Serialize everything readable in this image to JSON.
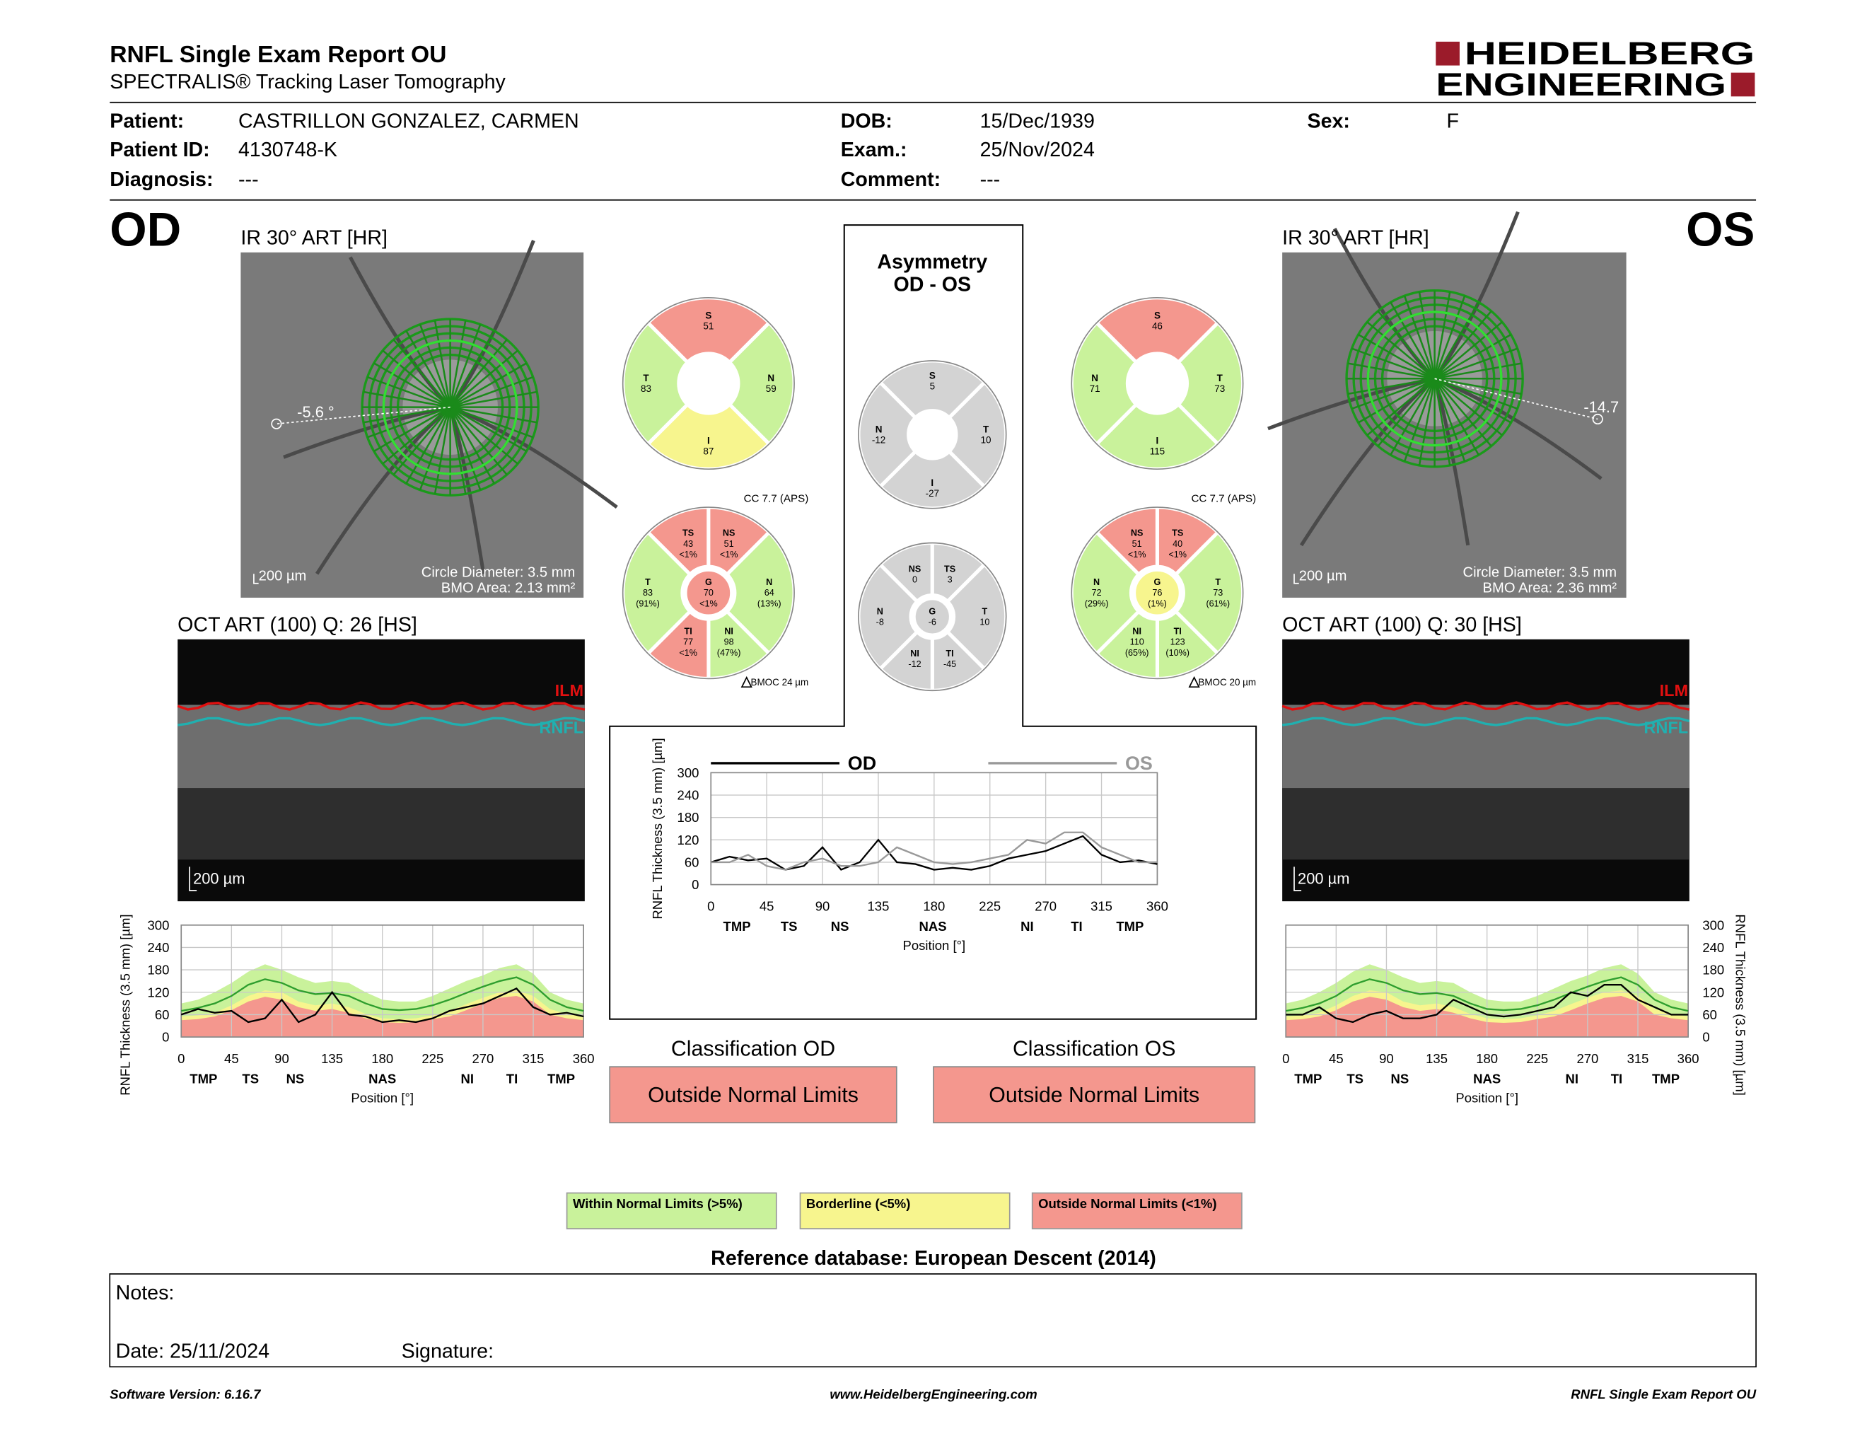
{
  "header": {
    "title": "RNFL Single Exam Report OU",
    "subtitle": "SPECTRALIS® Tracking Laser Tomography",
    "logo": [
      "HEIDELBERG",
      "ENGINEERING"
    ]
  },
  "patient": [
    {
      "label": "Patient:",
      "value": "CASTRILLON GONZALEZ, CARMEN"
    },
    {
      "label": "Patient ID:",
      "value": "4130748-K"
    },
    {
      "label": "Diagnosis:",
      "value": "---"
    },
    {
      "label": "DOB:",
      "value": "15/Dec/1939"
    },
    {
      "label": "Exam.:",
      "value": "25/Nov/2024"
    },
    {
      "label": "Comment:",
      "value": "---"
    },
    {
      "label": "Sex:",
      "value": "F"
    }
  ],
  "od": {
    "label": "OD",
    "image_title": "IR 30° ART [HR]",
    "angle": "-5.6 °",
    "image_scale": "200 µm",
    "circle": "Circle Diameter: 3.5 mm",
    "bmo": "BMO Area: 2.13 mm²",
    "oct_title": "OCT ART (100) Q: 26 [HS]",
    "oct_scale": "200 µm",
    "ilm": "ILM",
    "rnfl": "RNFL",
    "cc": "CC 7.7 (APS)",
    "bmoc": "BMOC 24 µm",
    "sectors4": [
      {
        "name": "S",
        "value": 51,
        "color": "#f4978e"
      },
      {
        "name": "N",
        "value": 59,
        "color": "#c9f29b"
      },
      {
        "name": "I",
        "value": 87,
        "color": "#f7f58e"
      },
      {
        "name": "T",
        "value": 83,
        "color": "#c9f29b"
      }
    ],
    "sectors6": [
      {
        "name": "TS",
        "value": 43,
        "pct": "<1%",
        "color": "#f4978e"
      },
      {
        "name": "NS",
        "value": 51,
        "pct": "<1%",
        "color": "#f4978e"
      },
      {
        "name": "N",
        "value": 64,
        "pct": "(13%)",
        "color": "#c9f29b"
      },
      {
        "name": "NI",
        "value": 98,
        "pct": "(47%)",
        "color": "#c9f29b"
      },
      {
        "name": "TI",
        "value": 77,
        "pct": "<1%",
        "color": "#f4978e"
      },
      {
        "name": "T",
        "value": 83,
        "pct": "(91%)",
        "color": "#c9f29b"
      },
      {
        "name": "G",
        "value": 70,
        "pct": "<1%",
        "color": "#f4978e"
      }
    ],
    "tsnit": {
      "type": "line",
      "y_label": "RNFL Thickness (3.5 mm) [µm]",
      "x_label": "Position [°]",
      "xlim": [
        0,
        360
      ],
      "ylim": [
        0,
        300
      ],
      "xticks": [
        0,
        45,
        90,
        135,
        180,
        225,
        270,
        315,
        360
      ],
      "yticks": [
        0,
        60,
        120,
        180,
        240,
        300
      ],
      "grid": true,
      "sector_ticks": [
        {
          "value": 20,
          "label": "TMP"
        },
        {
          "value": 62,
          "label": "TS"
        },
        {
          "value": 102,
          "label": "NS"
        },
        {
          "value": 180,
          "label": "NAS"
        },
        {
          "value": 256,
          "label": "NI"
        },
        {
          "value": 296,
          "label": "TI"
        },
        {
          "value": 340,
          "label": "TMP"
        }
      ],
      "x": [
        0,
        15,
        30,
        45,
        60,
        75,
        90,
        105,
        120,
        135,
        150,
        165,
        180,
        195,
        210,
        225,
        240,
        255,
        270,
        285,
        300,
        315,
        330,
        345,
        360
      ],
      "series": [
        {
          "style": "area",
          "color": "#c9f29b",
          "values": [
            90,
            100,
            120,
            145,
            175,
            195,
            180,
            160,
            145,
            150,
            145,
            120,
            100,
            95,
            95,
            110,
            130,
            150,
            165,
            185,
            195,
            170,
            120,
            100,
            90
          ]
        },
        {
          "style": "area",
          "color": "#f7f58e",
          "values": [
            55,
            58,
            65,
            85,
            110,
            125,
            120,
            95,
            85,
            90,
            80,
            62,
            50,
            48,
            50,
            58,
            70,
            88,
            105,
            120,
            125,
            110,
            75,
            62,
            55
          ]
        },
        {
          "style": "area",
          "color": "#f4978e",
          "values": [
            45,
            48,
            55,
            72,
            95,
            108,
            100,
            80,
            70,
            75,
            65,
            50,
            40,
            38,
            40,
            48,
            55,
            72,
            90,
            105,
            110,
            95,
            60,
            50,
            45
          ]
        },
        {
          "style": "line",
          "color": "#2e9e2e",
          "values": [
            70,
            78,
            90,
            110,
            140,
            155,
            145,
            125,
            115,
            118,
            110,
            90,
            75,
            72,
            75,
            85,
            100,
            118,
            135,
            150,
            160,
            140,
            100,
            80,
            70
          ]
        },
        {
          "style": "line",
          "color": "#000000",
          "values": [
            60,
            75,
            65,
            70,
            40,
            50,
            100,
            40,
            60,
            120,
            60,
            55,
            40,
            45,
            40,
            50,
            70,
            80,
            90,
            110,
            130,
            80,
            60,
            65,
            55
          ]
        }
      ]
    }
  },
  "os": {
    "label": "OS",
    "image_title": "IR 30° ART [HR]",
    "angle": "-14.7",
    "image_scale": "200 µm",
    "circle": "Circle Diameter: 3.5 mm",
    "bmo": "BMO Area: 2.36 mm²",
    "oct_title": "OCT ART (100) Q: 30 [HS]",
    "oct_scale": "200 µm",
    "ilm": "ILM",
    "rnfl": "RNFL",
    "cc": "CC 7.7 (APS)",
    "bmoc": "BMOC 20 µm",
    "sectors4": [
      {
        "name": "S",
        "value": 46,
        "color": "#f4978e"
      },
      {
        "name": "T",
        "value": 73,
        "color": "#c9f29b"
      },
      {
        "name": "I",
        "value": 115,
        "color": "#c9f29b"
      },
      {
        "name": "N",
        "value": 71,
        "color": "#c9f29b"
      }
    ],
    "sectors6": [
      {
        "name": "NS",
        "value": 51,
        "pct": "<1%",
        "color": "#f4978e"
      },
      {
        "name": "TS",
        "value": 40,
        "pct": "<1%",
        "color": "#f4978e"
      },
      {
        "name": "T",
        "value": 73,
        "pct": "(61%)",
        "color": "#c9f29b"
      },
      {
        "name": "TI",
        "value": 123,
        "pct": "(10%)",
        "color": "#c9f29b"
      },
      {
        "name": "NI",
        "value": 110,
        "pct": "(65%)",
        "color": "#c9f29b"
      },
      {
        "name": "N",
        "value": 72,
        "pct": "(29%)",
        "color": "#c9f29b"
      },
      {
        "name": "G",
        "value": 76,
        "pct": "(1%)",
        "color": "#f7f58e"
      }
    ],
    "tsnit": {
      "type": "line",
      "y_label": "RNFL Thickness (3.5 mm) [µm]",
      "x_label": "Position [°]",
      "xlim": [
        0,
        360
      ],
      "ylim": [
        0,
        300
      ],
      "xticks": [
        0,
        45,
        90,
        135,
        180,
        225,
        270,
        315,
        360
      ],
      "yticks": [
        0,
        60,
        120,
        180,
        240,
        300
      ],
      "grid": true,
      "sector_ticks": [
        {
          "value": 20,
          "label": "TMP"
        },
        {
          "value": 62,
          "label": "TS"
        },
        {
          "value": 102,
          "label": "NS"
        },
        {
          "value": 180,
          "label": "NAS"
        },
        {
          "value": 256,
          "label": "NI"
        },
        {
          "value": 296,
          "label": "TI"
        },
        {
          "value": 340,
          "label": "TMP"
        }
      ],
      "x": [
        0,
        15,
        30,
        45,
        60,
        75,
        90,
        105,
        120,
        135,
        150,
        165,
        180,
        195,
        210,
        225,
        240,
        255,
        270,
        285,
        300,
        315,
        330,
        345,
        360
      ],
      "series": [
        {
          "style": "area",
          "color": "#c9f29b",
          "values": [
            90,
            100,
            120,
            145,
            175,
            195,
            180,
            160,
            145,
            150,
            145,
            120,
            100,
            95,
            95,
            110,
            130,
            150,
            165,
            185,
            195,
            170,
            120,
            100,
            90
          ]
        },
        {
          "style": "area",
          "color": "#f7f58e",
          "values": [
            55,
            58,
            65,
            85,
            110,
            125,
            120,
            95,
            85,
            90,
            80,
            62,
            50,
            48,
            50,
            58,
            70,
            88,
            105,
            120,
            125,
            110,
            75,
            62,
            55
          ]
        },
        {
          "style": "area",
          "color": "#f4978e",
          "values": [
            45,
            48,
            55,
            72,
            95,
            108,
            100,
            80,
            70,
            75,
            65,
            50,
            40,
            38,
            40,
            48,
            55,
            72,
            90,
            105,
            110,
            95,
            60,
            50,
            45
          ]
        },
        {
          "style": "line",
          "color": "#2e9e2e",
          "values": [
            70,
            78,
            90,
            110,
            140,
            155,
            145,
            125,
            115,
            118,
            110,
            90,
            75,
            72,
            75,
            85,
            100,
            118,
            135,
            150,
            160,
            140,
            100,
            80,
            70
          ]
        },
        {
          "style": "line",
          "color": "#000000",
          "values": [
            60,
            60,
            80,
            50,
            40,
            60,
            70,
            50,
            50,
            60,
            100,
            80,
            60,
            55,
            60,
            70,
            80,
            120,
            110,
            140,
            140,
            100,
            80,
            60,
            60
          ]
        }
      ]
    }
  },
  "asymmetry": {
    "title": "Asymmetry",
    "subtitle": "OD - OS",
    "sectors4": [
      {
        "name": "S",
        "value": 5,
        "color": "#d3d3d3"
      },
      {
        "name": "T",
        "value": 10,
        "color": "#d3d3d3"
      },
      {
        "name": "I",
        "value": -27,
        "color": "#d3d3d3"
      },
      {
        "name": "N",
        "value": -12,
        "color": "#d3d3d3"
      }
    ],
    "sectors6": [
      {
        "name": "NS",
        "value": 0,
        "color": "#d3d3d3"
      },
      {
        "name": "TS",
        "value": 3,
        "color": "#d3d3d3"
      },
      {
        "name": "T",
        "value": 10,
        "color": "#d3d3d3"
      },
      {
        "name": "TI",
        "value": -45,
        "color": "#d3d3d3"
      },
      {
        "name": "NI",
        "value": -12,
        "color": "#d3d3d3"
      },
      {
        "name": "N",
        "value": -8,
        "color": "#d3d3d3"
      },
      {
        "name": "G",
        "value": -6,
        "color": "#d3d3d3"
      }
    ],
    "chart": {
      "type": "line",
      "y_label": "RNFL Thickness (3.5 mm) [µm]",
      "x_label": "Position [°]",
      "xlim": [
        0,
        360
      ],
      "ylim": [
        0,
        300
      ],
      "xticks": [
        0,
        45,
        90,
        135,
        180,
        225,
        270,
        315,
        360
      ],
      "yticks": [
        0,
        60,
        120,
        180,
        240,
        300
      ],
      "grid": true,
      "sector_ticks": [
        {
          "value": 21,
          "label": "TMP"
        },
        {
          "value": 63,
          "label": "TS"
        },
        {
          "value": 104,
          "label": "NS"
        },
        {
          "value": 179,
          "label": "NAS"
        },
        {
          "value": 255,
          "label": "NI"
        },
        {
          "value": 295,
          "label": "TI"
        },
        {
          "value": 338,
          "label": "TMP"
        }
      ],
      "x": [
        0,
        15,
        30,
        45,
        60,
        75,
        90,
        105,
        120,
        135,
        150,
        165,
        180,
        195,
        210,
        225,
        240,
        255,
        270,
        285,
        300,
        315,
        330,
        345,
        360
      ],
      "series": [
        {
          "name": "OD",
          "style": "line",
          "color": "#000000",
          "values": [
            60,
            75,
            65,
            70,
            40,
            50,
            100,
            40,
            60,
            120,
            60,
            55,
            40,
            45,
            40,
            50,
            70,
            80,
            90,
            110,
            130,
            80,
            60,
            65,
            55
          ]
        },
        {
          "name": "OS",
          "style": "line",
          "color": "#999999",
          "values": [
            60,
            60,
            80,
            50,
            40,
            60,
            70,
            50,
            50,
            60,
            100,
            80,
            60,
            55,
            60,
            70,
            80,
            120,
            110,
            140,
            140,
            100,
            80,
            60,
            60
          ]
        }
      ]
    }
  },
  "classification": [
    {
      "title": "Classification OD",
      "result": "Outside Normal Limits",
      "color": "#f4978e"
    },
    {
      "title": "Classification OS",
      "result": "Outside Normal Limits",
      "color": "#f4978e"
    }
  ],
  "legend": [
    {
      "label": "Within Normal Limits (>5%)",
      "color": "#c9f29b"
    },
    {
      "label": "Borderline (<5%)",
      "color": "#f7f58e"
    },
    {
      "label": "Outside Normal Limits (<1%)",
      "color": "#f4978e"
    }
  ],
  "reference": "Reference database: European Descent (2014)",
  "notes": {
    "notes": "Notes:",
    "date": "Date: 25/11/2024",
    "signature": "Signature:"
  },
  "footer": [
    "Software Version: 6.16.7",
    "www.HeidelbergEngineering.com",
    "RNFL Single Exam Report OU"
  ]
}
